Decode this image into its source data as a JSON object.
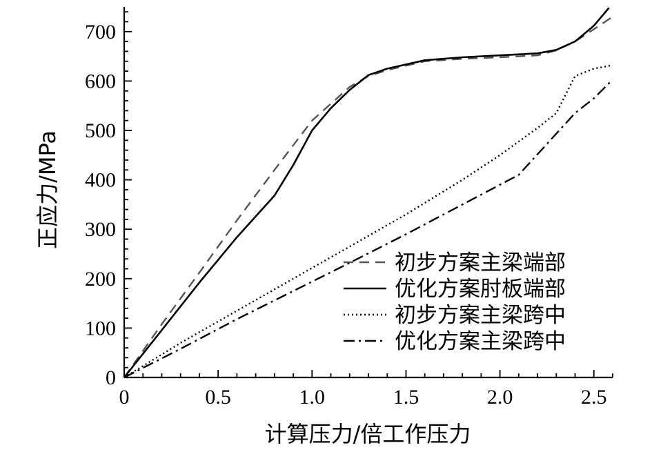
{
  "chart_data": {
    "type": "line",
    "title": "",
    "xlabel": "计算压力/倍工作压力",
    "ylabel": "正应力/MPa",
    "xlim": [
      0,
      2.6
    ],
    "ylim": [
      0,
      750
    ],
    "xticks": [
      {
        "value": 0,
        "label": "0"
      },
      {
        "value": 0.5,
        "label": "0.5"
      },
      {
        "value": 1.0,
        "label": "1.0"
      },
      {
        "value": 1.5,
        "label": "1.5"
      },
      {
        "value": 2.0,
        "label": "2.0"
      },
      {
        "value": 2.5,
        "label": "2.5"
      }
    ],
    "yticks": [
      {
        "value": 0,
        "label": "0"
      },
      {
        "value": 100,
        "label": "100"
      },
      {
        "value": 200,
        "label": "200"
      },
      {
        "value": 300,
        "label": "300"
      },
      {
        "value": 400,
        "label": "400"
      },
      {
        "value": 500,
        "label": "500"
      },
      {
        "value": 600,
        "label": "600"
      },
      {
        "value": 700,
        "label": "700"
      }
    ],
    "grid": false,
    "legend_position": "bottom-right",
    "series": [
      {
        "name": "初步方案主梁端部",
        "style": "dashed",
        "color": "#555555",
        "points": [
          [
            0,
            0
          ],
          [
            0.2,
            108
          ],
          [
            0.4,
            212
          ],
          [
            0.6,
            318
          ],
          [
            0.8,
            420
          ],
          [
            1.0,
            520
          ],
          [
            1.2,
            588
          ],
          [
            1.3,
            610
          ],
          [
            1.4,
            622
          ],
          [
            1.6,
            640
          ],
          [
            1.8,
            645
          ],
          [
            2.0,
            648
          ],
          [
            2.2,
            652
          ],
          [
            2.3,
            662
          ],
          [
            2.4,
            680
          ],
          [
            2.5,
            705
          ],
          [
            2.6,
            730
          ]
        ]
      },
      {
        "name": "优化方案肘板端部",
        "style": "solid",
        "color": "#000000",
        "points": [
          [
            0,
            0
          ],
          [
            0.2,
            96
          ],
          [
            0.4,
            192
          ],
          [
            0.6,
            284
          ],
          [
            0.8,
            368
          ],
          [
            0.9,
            430
          ],
          [
            1.0,
            500
          ],
          [
            1.1,
            545
          ],
          [
            1.2,
            582
          ],
          [
            1.3,
            612
          ],
          [
            1.4,
            625
          ],
          [
            1.6,
            642
          ],
          [
            1.8,
            648
          ],
          [
            2.0,
            652
          ],
          [
            2.2,
            656
          ],
          [
            2.3,
            663
          ],
          [
            2.4,
            680
          ],
          [
            2.5,
            712
          ],
          [
            2.58,
            748
          ]
        ]
      },
      {
        "name": "初步方案主梁跨中",
        "style": "dotted",
        "color": "#000000",
        "points": [
          [
            0,
            0
          ],
          [
            0.3,
            70
          ],
          [
            0.6,
            135
          ],
          [
            0.9,
            200
          ],
          [
            1.2,
            265
          ],
          [
            1.5,
            330
          ],
          [
            1.8,
            400
          ],
          [
            2.0,
            450
          ],
          [
            2.2,
            505
          ],
          [
            2.3,
            535
          ],
          [
            2.4,
            610
          ],
          [
            2.5,
            625
          ],
          [
            2.6,
            632
          ]
        ]
      },
      {
        "name": "优化方案主梁跨中",
        "style": "dashdot",
        "color": "#000000",
        "points": [
          [
            0,
            0
          ],
          [
            0.3,
            58
          ],
          [
            0.6,
            118
          ],
          [
            0.9,
            175
          ],
          [
            1.2,
            232
          ],
          [
            1.5,
            290
          ],
          [
            1.8,
            350
          ],
          [
            2.1,
            410
          ],
          [
            2.4,
            535
          ],
          [
            2.5,
            565
          ],
          [
            2.6,
            603
          ]
        ]
      }
    ]
  }
}
